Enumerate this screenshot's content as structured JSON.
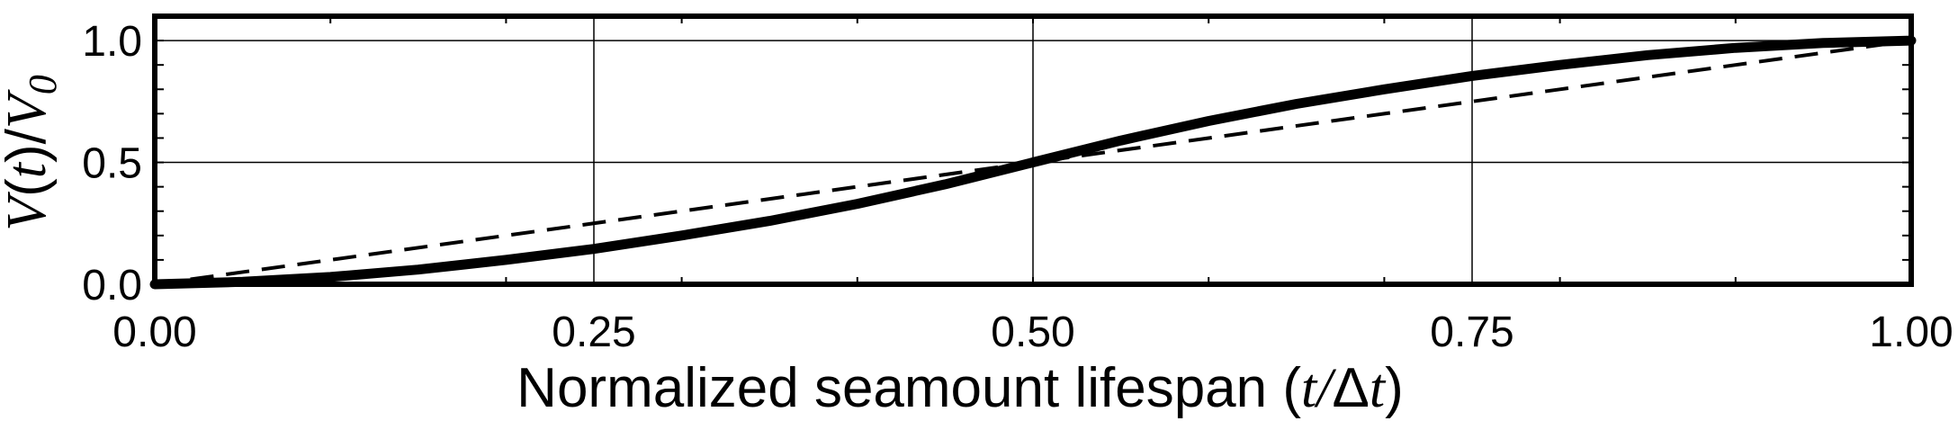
{
  "chart_data": {
    "type": "line",
    "xlim": [
      0,
      1
    ],
    "ylim": [
      0,
      1.1
    ],
    "xticks": [
      0,
      0.25,
      0.5,
      0.75,
      1.0
    ],
    "xtick_labels": [
      "0.00",
      "0.25",
      "0.50",
      "0.75",
      "1.00"
    ],
    "yticks": [
      0,
      0.5,
      1.0
    ],
    "ytick_labels": [
      "0.0",
      "0.5",
      "1.0"
    ],
    "grid": true,
    "xlabel": {
      "prefix": "Normalized seamount lifespan (",
      "num": "t",
      "slash": "/",
      "delta": "Δ",
      "den": "t",
      "suffix": ")"
    },
    "ylabel": {
      "V": "V",
      "open": "(",
      "t": "t",
      "close": ")/",
      "V0": "V",
      "sub": "0"
    },
    "series": [
      {
        "style": "solid-thick",
        "color": "#000000",
        "x": [
          0,
          0.05,
          0.1,
          0.15,
          0.2,
          0.25,
          0.3,
          0.35,
          0.4,
          0.45,
          0.5,
          0.55,
          0.6,
          0.65,
          0.7,
          0.75,
          0.8,
          0.85,
          0.9,
          0.95,
          1.0
        ],
        "y": [
          0,
          0.01,
          0.03,
          0.06,
          0.1,
          0.145,
          0.2,
          0.26,
          0.33,
          0.41,
          0.5,
          0.59,
          0.67,
          0.74,
          0.8,
          0.855,
          0.9,
          0.94,
          0.97,
          0.99,
          1.0
        ]
      },
      {
        "style": "dashed",
        "color": "#000000",
        "x": [
          0,
          0.1,
          0.2,
          0.3,
          0.4,
          0.5,
          0.6,
          0.7,
          0.8,
          0.9,
          1.0
        ],
        "y": [
          0,
          0.1,
          0.2,
          0.3,
          0.4,
          0.5,
          0.6,
          0.7,
          0.8,
          0.9,
          1.0
        ]
      }
    ]
  }
}
